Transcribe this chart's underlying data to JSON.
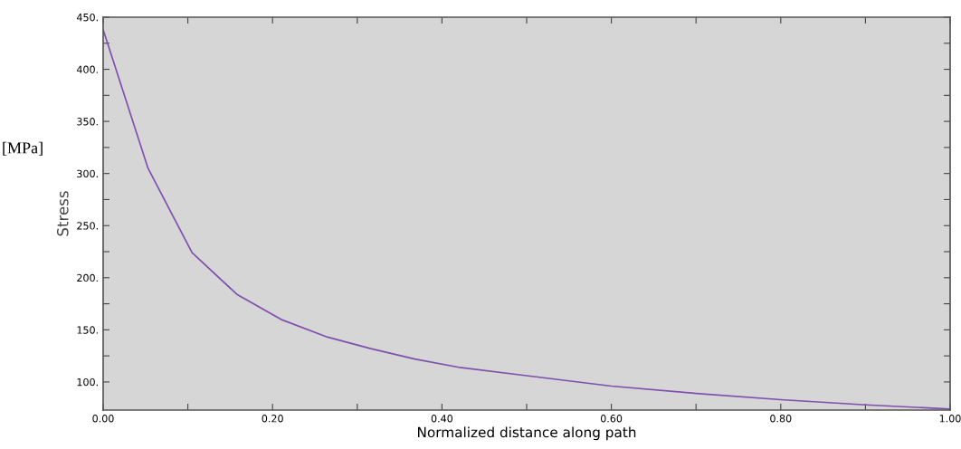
{
  "chart_data": {
    "type": "line",
    "xlabel": "Normalized distance along path",
    "ylabel": "Stress",
    "annotations": [
      "[MPa]"
    ],
    "x": [
      0,
      0.053,
      0.105,
      0.158,
      0.21,
      0.265,
      0.316,
      0.368,
      0.42,
      0.5,
      0.6,
      0.7,
      0.8,
      0.9,
      1.0
    ],
    "series": [
      {
        "color": "#7f4fae",
        "values": [
          438,
          305,
          224,
          184,
          160,
          143,
          132,
          122,
          114,
          106,
          96,
          89,
          83,
          78,
          74
        ]
      }
    ],
    "xlim": [
      0,
      1.0
    ],
    "ylim": [
      73,
      450
    ],
    "xticks": [
      {
        "value": 0,
        "label": "0.00"
      },
      {
        "value": 0.1,
        "label": null
      },
      {
        "value": 0.2,
        "label": "0.20"
      },
      {
        "value": 0.3,
        "label": null
      },
      {
        "value": 0.4,
        "label": "0.40"
      },
      {
        "value": 0.5,
        "label": null
      },
      {
        "value": 0.6,
        "label": "0.60"
      },
      {
        "value": 0.7,
        "label": null
      },
      {
        "value": 0.8,
        "label": "0.80"
      },
      {
        "value": 0.9,
        "label": null
      },
      {
        "value": 1.0,
        "label": "1.00"
      }
    ],
    "yticks": [
      {
        "value": 100,
        "label": "100."
      },
      {
        "value": 125,
        "label": null
      },
      {
        "value": 150,
        "label": "150."
      },
      {
        "value": 175,
        "label": null
      },
      {
        "value": 200,
        "label": "200."
      },
      {
        "value": 225,
        "label": null
      },
      {
        "value": 250,
        "label": "250."
      },
      {
        "value": 275,
        "label": null
      },
      {
        "value": 300,
        "label": "300."
      },
      {
        "value": 325,
        "label": null
      },
      {
        "value": 350,
        "label": "350."
      },
      {
        "value": 375,
        "label": null
      },
      {
        "value": 400,
        "label": "400."
      },
      {
        "value": 425,
        "label": null
      },
      {
        "value": 450,
        "label": "450."
      }
    ],
    "grid": false,
    "legend": false,
    "line_style": "solid",
    "marker": "none"
  }
}
